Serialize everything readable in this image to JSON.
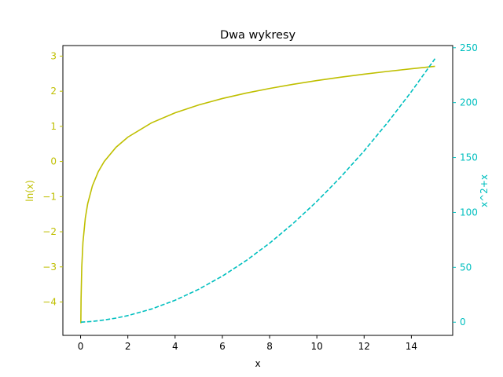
{
  "chart_data": {
    "type": "line",
    "title": "Dwa wykresy",
    "xlabel": "x",
    "xlim": [
      -0.75,
      15.75
    ],
    "x_ticks": [
      0,
      2,
      4,
      6,
      8,
      10,
      12,
      14
    ],
    "grid": false,
    "legend": "none",
    "axes": {
      "left": {
        "label": "ln(x)",
        "color": "#bfbf00",
        "ylim": [
          -4.95,
          3.3
        ],
        "ticks": [
          -4,
          -3,
          -2,
          -1,
          0,
          1,
          2,
          3
        ],
        "tick_labels": [
          "−4",
          "−3",
          "−2",
          "−1",
          "0",
          "1",
          "2",
          "3"
        ]
      },
      "right": {
        "label": "x^2+x",
        "color": "#00bfbf",
        "ylim": [
          -12,
          252
        ],
        "ticks": [
          0,
          50,
          100,
          150,
          200,
          250
        ],
        "tick_labels": [
          "0",
          "50",
          "100",
          "150",
          "200",
          "250"
        ]
      }
    },
    "series": [
      {
        "expression": "ln(x)",
        "axis": "left",
        "style": "solid",
        "color": "#bfbf00",
        "x": [
          0.01,
          0.02,
          0.05,
          0.1,
          0.2,
          0.3,
          0.5,
          0.75,
          1,
          1.5,
          2,
          3,
          4,
          5,
          6,
          7,
          8,
          9,
          10,
          11,
          12,
          13,
          14,
          15
        ],
        "y": [
          -4.605,
          -3.912,
          -2.996,
          -2.303,
          -1.609,
          -1.204,
          -0.693,
          -0.288,
          0,
          0.405,
          0.693,
          1.099,
          1.386,
          1.609,
          1.792,
          1.946,
          2.079,
          2.197,
          2.303,
          2.398,
          2.485,
          2.565,
          2.639,
          2.708
        ]
      },
      {
        "expression": "x^2+x",
        "axis": "right",
        "style": "dashed",
        "color": "#00bfbf",
        "x": [
          0.01,
          0.5,
          1,
          1.5,
          2,
          3,
          4,
          5,
          6,
          7,
          8,
          9,
          10,
          11,
          12,
          13,
          14,
          15
        ],
        "y": [
          0.0101,
          0.75,
          2,
          3.75,
          6,
          12,
          20,
          30,
          42,
          56,
          72,
          90,
          110,
          132,
          156,
          182,
          210,
          240
        ]
      }
    ]
  }
}
